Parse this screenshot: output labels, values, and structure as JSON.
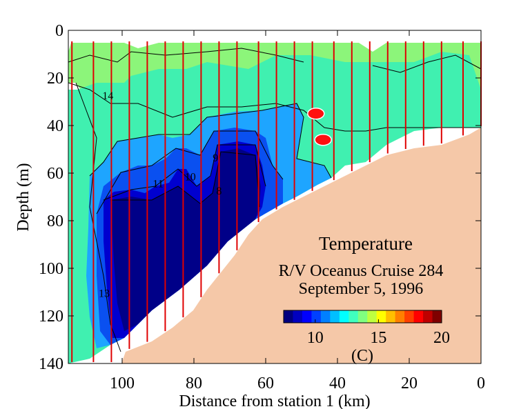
{
  "chart_data": {
    "type": "heatmap",
    "title": "Temperature",
    "subtitle_lines": [
      "R/V Oceanus Cruise 284",
      "September 5, 1996"
    ],
    "xlabel": "Distance from station 1 (km)",
    "ylabel": "Depth (m)",
    "xlim": [
      115,
      0
    ],
    "ylim": [
      0,
      140
    ],
    "x_ticks": [
      100,
      80,
      60,
      40,
      20,
      0
    ],
    "y_ticks": [
      0,
      20,
      40,
      60,
      80,
      100,
      120,
      140
    ],
    "colorbar": {
      "label": "(C)",
      "range": [
        7.5,
        20
      ],
      "ticks": [
        10,
        15,
        20
      ],
      "colors": [
        "#00007f",
        "#0000bf",
        "#0000ff",
        "#0040ff",
        "#0080ff",
        "#00bfff",
        "#00ffff",
        "#40ffbf",
        "#80ff80",
        "#bfff40",
        "#ffff00",
        "#ffbf00",
        "#ff8000",
        "#ff4000",
        "#ff0000",
        "#bf0000",
        "#7f0000"
      ]
    },
    "contour_labels": [
      {
        "text": "14",
        "x": 104,
        "y": 29
      },
      {
        "text": "11",
        "x": 90,
        "y": 66
      },
      {
        "text": "10",
        "x": 81,
        "y": 63
      },
      {
        "text": "9",
        "x": 74,
        "y": 55
      },
      {
        "text": "8",
        "x": 73,
        "y": 69
      },
      {
        "text": "13",
        "x": 105,
        "y": 112
      }
    ],
    "station_x": [
      114,
      108,
      103,
      98,
      93,
      88,
      83,
      78,
      73,
      68,
      62,
      57,
      52,
      47,
      41,
      36,
      31,
      26,
      21,
      16,
      11,
      5,
      0
    ],
    "markers": [
      {
        "x": 46,
        "y": 35
      },
      {
        "x": 44,
        "y": 46
      }
    ]
  }
}
